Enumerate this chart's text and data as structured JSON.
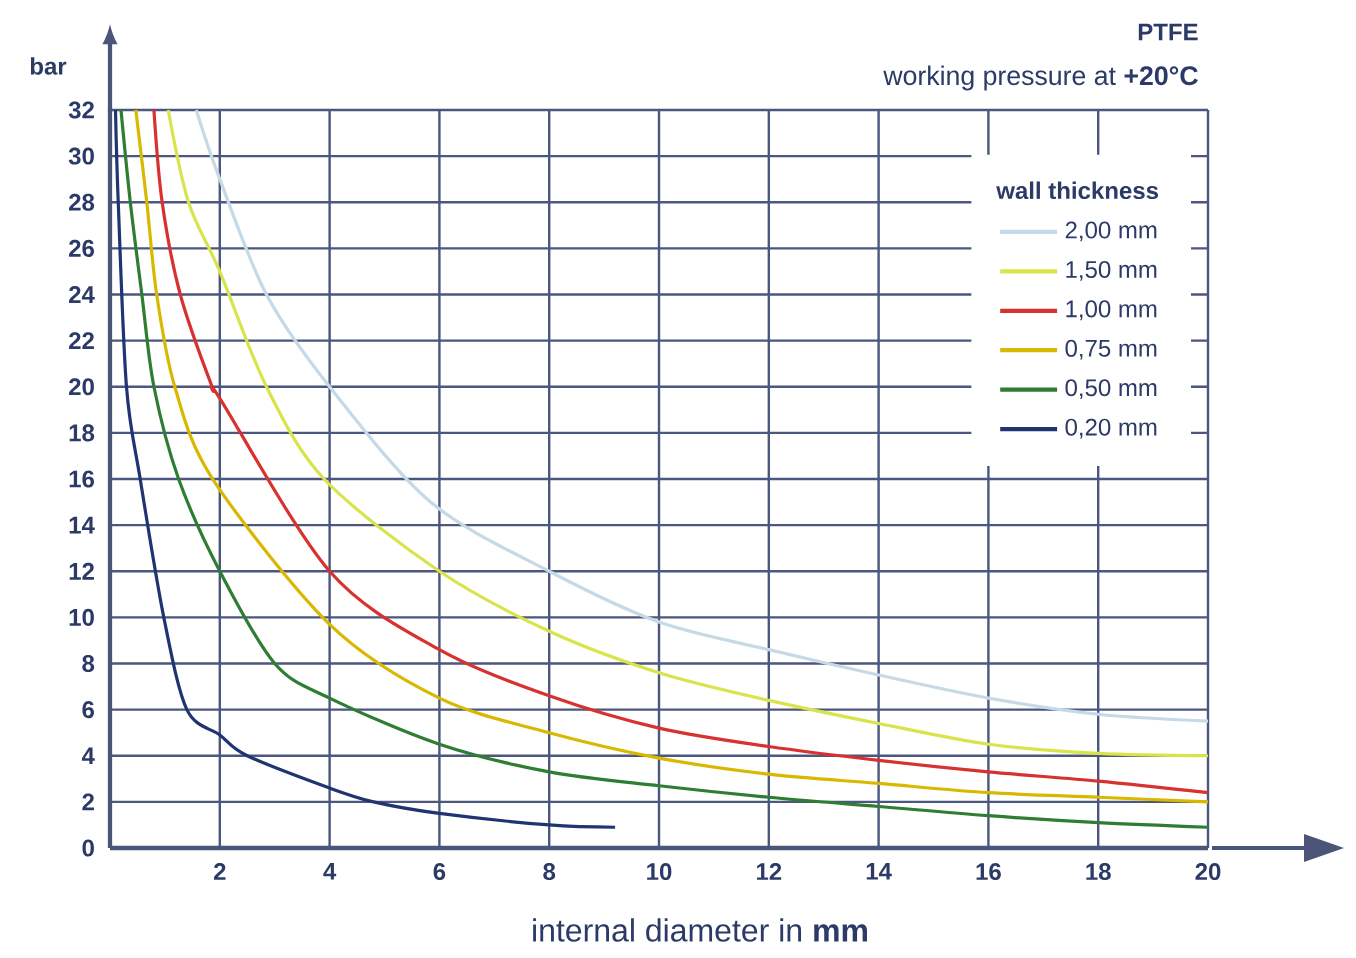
{
  "chart_data": {
    "type": "line",
    "title": "PTFE",
    "subtitle": "working pressure at **+20°C**",
    "xlabel": "internal diameter in **mm**",
    "ylabel": "bar",
    "legend_title": "wall thickness",
    "xlim": [
      0,
      20
    ],
    "ylim": [
      0,
      32
    ],
    "xticks": [
      2,
      4,
      6,
      8,
      10,
      12,
      14,
      16,
      18,
      20
    ],
    "yticks": [
      0,
      2,
      4,
      6,
      8,
      10,
      12,
      14,
      16,
      18,
      20,
      22,
      24,
      26,
      28,
      30,
      32
    ],
    "grid": true,
    "legend": "top right",
    "series": [
      {
        "name": "2,00 mm",
        "color": "#c5d9e6",
        "x": [
          1.57,
          2,
          2.85,
          4,
          5.84,
          8,
          10,
          12,
          14,
          16,
          18,
          20
        ],
        "values": [
          32,
          29,
          24,
          20,
          15,
          12,
          9.8,
          8.6,
          7.5,
          6.5,
          5.8,
          5.5
        ]
      },
      {
        "name": "1,50 mm",
        "color": "#d9e44a",
        "x": [
          1.06,
          1.43,
          2,
          2.85,
          3.9,
          6,
          8,
          10,
          12,
          14,
          16,
          18,
          20
        ],
        "values": [
          32,
          28,
          25,
          20,
          16,
          12,
          9.4,
          7.6,
          6.4,
          5.4,
          4.5,
          4.1,
          4
        ]
      },
      {
        "name": "1,00 mm",
        "color": "#d7322f",
        "x": [
          0.8,
          0.95,
          1.28,
          1.86,
          2,
          4,
          6,
          8,
          10,
          12,
          14,
          16,
          18,
          20
        ],
        "values": [
          32,
          28,
          24,
          20,
          19.5,
          12,
          8.6,
          6.6,
          5.2,
          4.4,
          3.8,
          3.3,
          2.9,
          2.4
        ]
      },
      {
        "name": "0,75 mm",
        "color": "#d8b800",
        "x": [
          0.47,
          0.67,
          0.85,
          1.18,
          1.87,
          4,
          6,
          8,
          10,
          12,
          14,
          16,
          18,
          20
        ],
        "values": [
          32,
          28,
          24,
          20,
          16,
          9.7,
          6.5,
          5,
          3.9,
          3.2,
          2.8,
          2.4,
          2.2,
          2
        ]
      },
      {
        "name": "0,50 mm",
        "color": "#2e7d32",
        "x": [
          0.2,
          0.37,
          0.58,
          0.8,
          1.25,
          2,
          3,
          4,
          6,
          8,
          10,
          12,
          14,
          16,
          18,
          20
        ],
        "values": [
          32,
          28,
          24,
          20,
          16,
          12,
          8,
          6.5,
          4.5,
          3.3,
          2.7,
          2.2,
          1.8,
          1.4,
          1.1,
          0.9
        ]
      },
      {
        "name": "0,20 mm",
        "color": "#1f3470",
        "x": [
          0.1,
          0.15,
          0.3,
          0.55,
          0.98,
          1.4,
          2,
          2.5,
          4,
          4.8,
          6,
          8,
          9.2
        ],
        "values": [
          32,
          28,
          20,
          16,
          10,
          6,
          4.9,
          4,
          2.6,
          2,
          1.5,
          1,
          0.9
        ]
      }
    ]
  }
}
